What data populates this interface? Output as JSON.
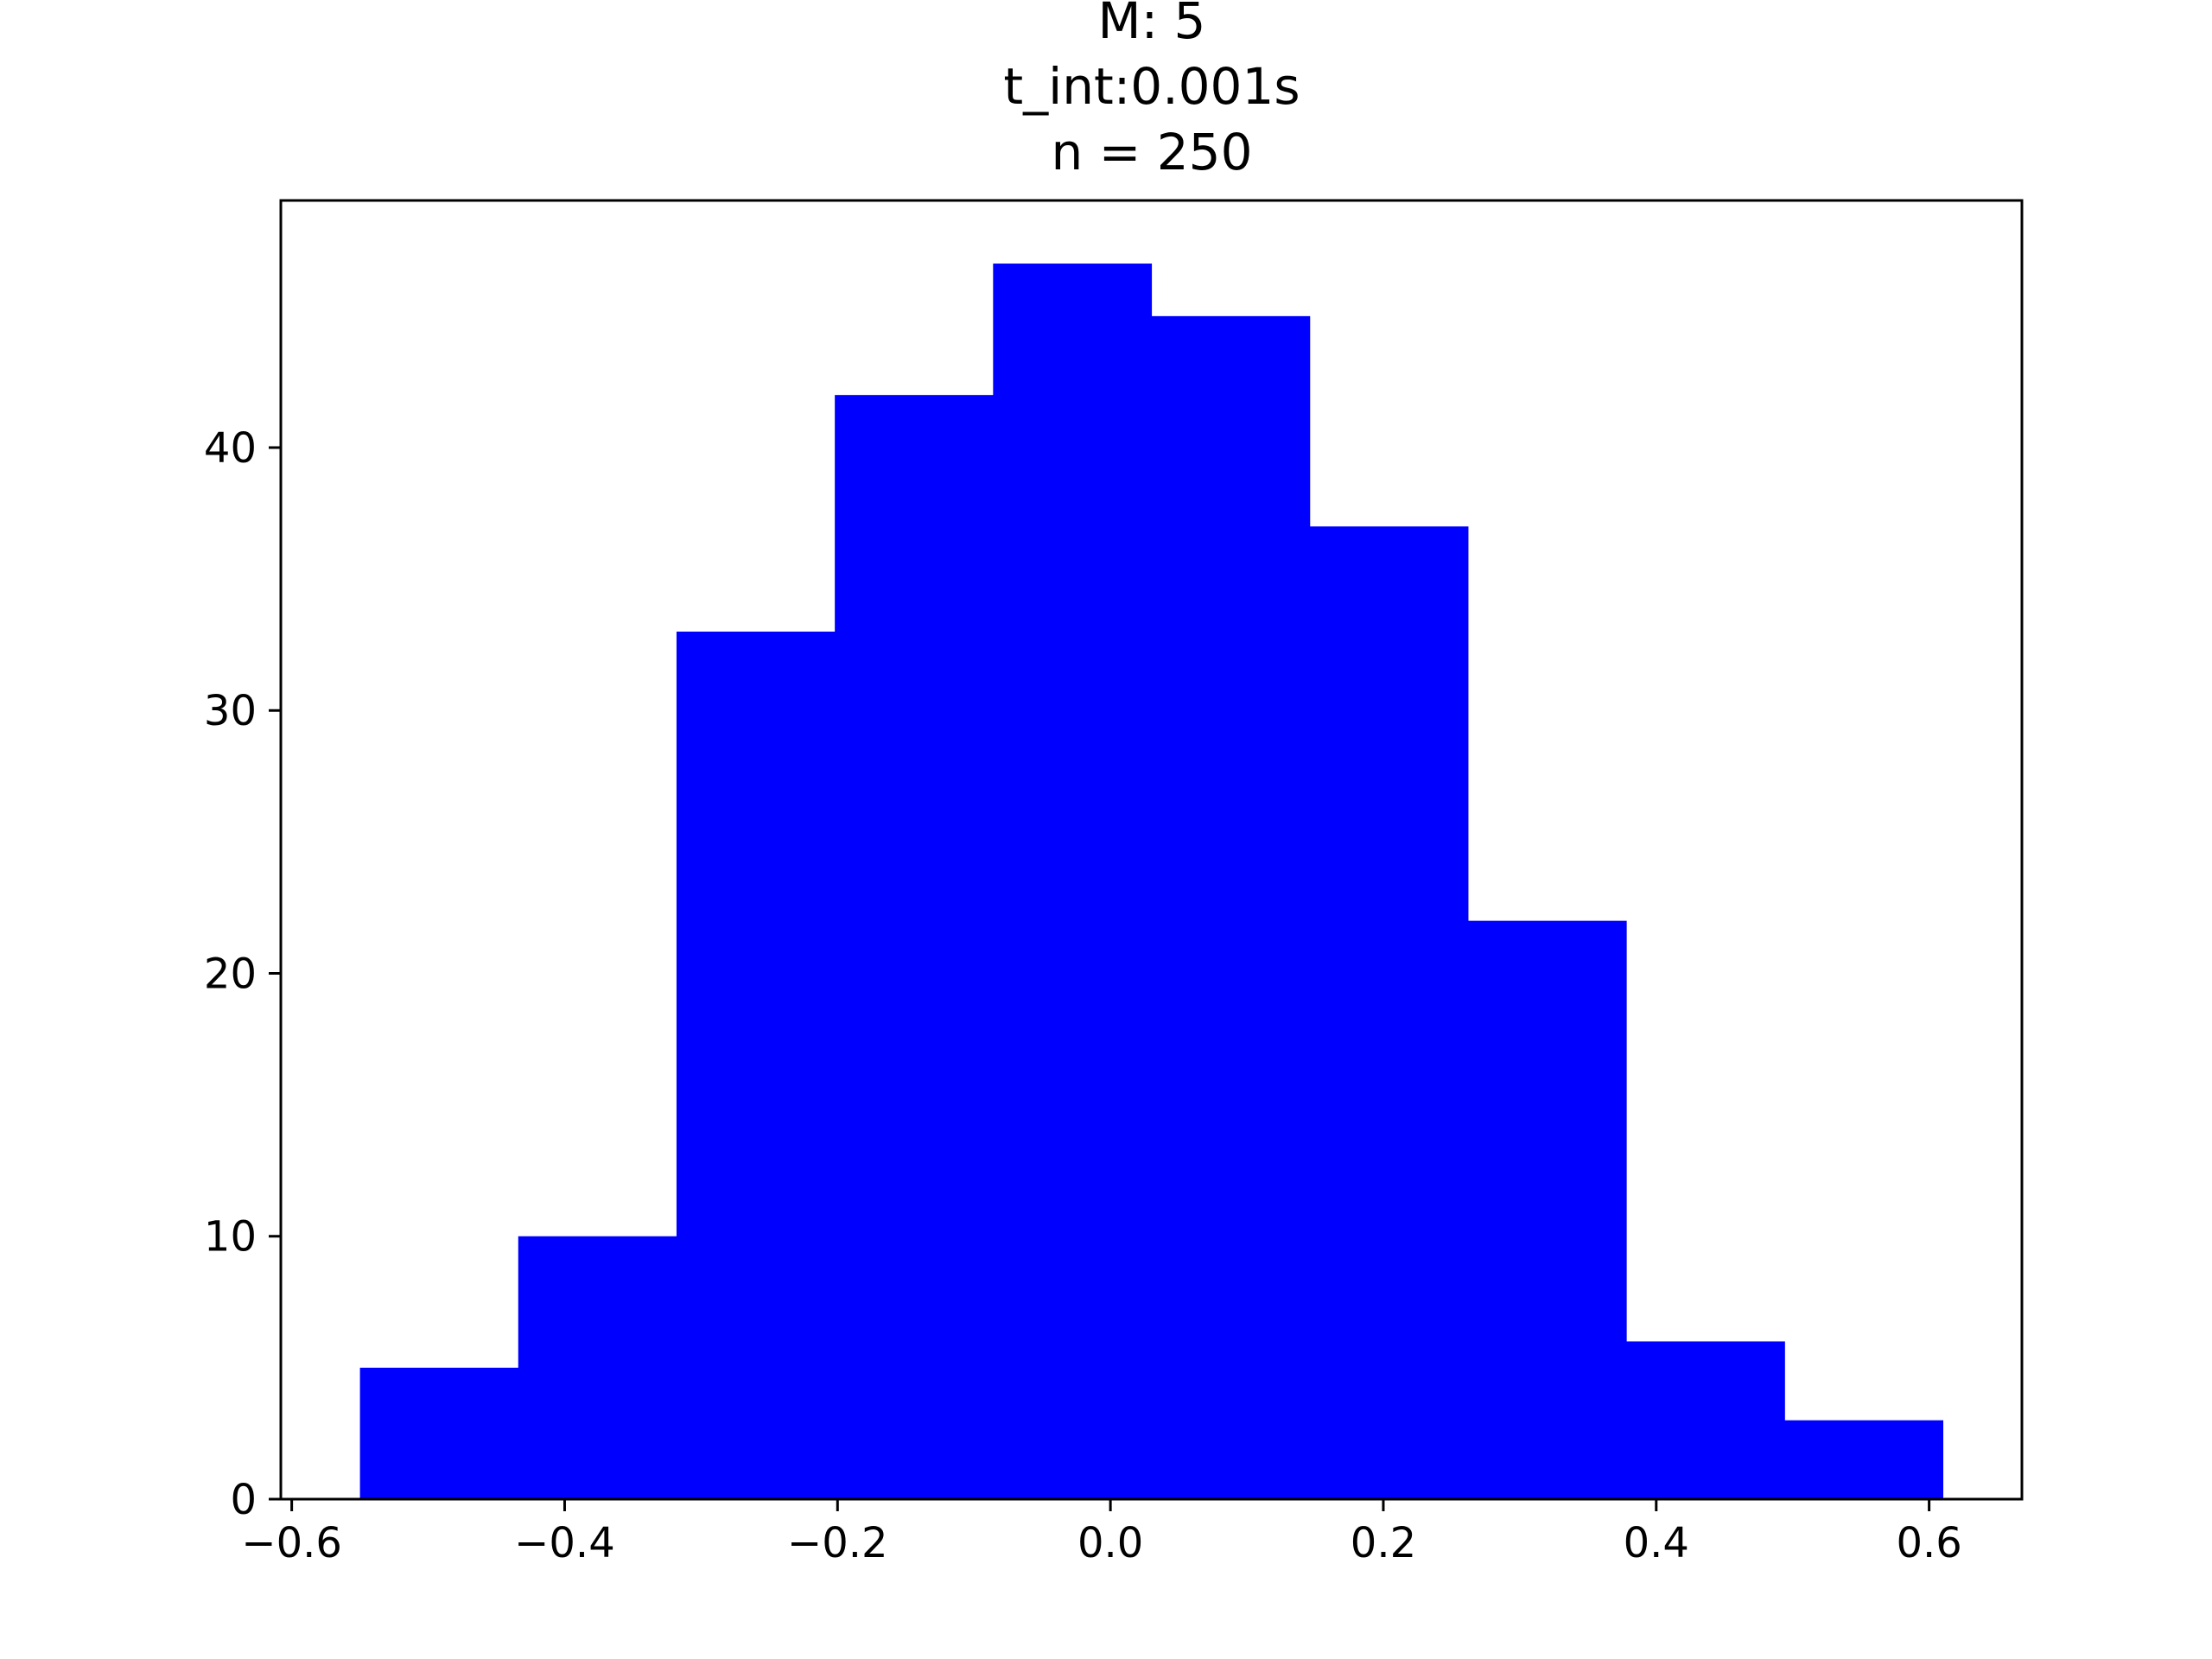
{
  "chart_data": {
    "type": "bar",
    "title_lines": [
      "M: 5",
      "t_int:0.001s",
      "n = 250"
    ],
    "xlabel": "",
    "ylabel": "",
    "bins": [
      {
        "x0": -0.55,
        "x1": -0.434,
        "count": 5
      },
      {
        "x0": -0.434,
        "x1": -0.318,
        "count": 10
      },
      {
        "x0": -0.318,
        "x1": -0.202,
        "count": 33
      },
      {
        "x0": -0.202,
        "x1": -0.086,
        "count": 42
      },
      {
        "x0": -0.086,
        "x1": 0.03,
        "count": 47
      },
      {
        "x0": 0.03,
        "x1": 0.146,
        "count": 45
      },
      {
        "x0": 0.146,
        "x1": 0.262,
        "count": 37
      },
      {
        "x0": 0.262,
        "x1": 0.378,
        "count": 22
      },
      {
        "x0": 0.378,
        "x1": 0.494,
        "count": 6
      },
      {
        "x0": 0.494,
        "x1": 0.61,
        "count": 3
      }
    ],
    "xlim": [
      -0.608,
      0.668
    ],
    "ylim": [
      0,
      49.4
    ],
    "xticks": [
      {
        "value": -0.6,
        "label": "−0.6"
      },
      {
        "value": -0.4,
        "label": "−0.4"
      },
      {
        "value": -0.2,
        "label": "−0.2"
      },
      {
        "value": 0.0,
        "label": "0.0"
      },
      {
        "value": 0.2,
        "label": "0.2"
      },
      {
        "value": 0.4,
        "label": "0.4"
      },
      {
        "value": 0.6,
        "label": "0.6"
      }
    ],
    "yticks": [
      {
        "value": 0,
        "label": "0"
      },
      {
        "value": 10,
        "label": "10"
      },
      {
        "value": 20,
        "label": "20"
      },
      {
        "value": 30,
        "label": "30"
      },
      {
        "value": 40,
        "label": "40"
      }
    ],
    "bar_color": "#0000ff",
    "grid": false,
    "legend": "none"
  }
}
